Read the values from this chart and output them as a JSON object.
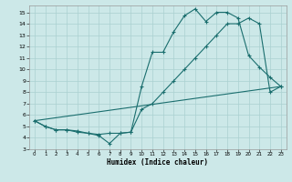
{
  "xlabel": "Humidex (Indice chaleur)",
  "bg_color": "#cce8e8",
  "grid_color": "#aad0d0",
  "line_color": "#1a6e6e",
  "xlim": [
    -0.5,
    23.5
  ],
  "ylim": [
    3,
    15.6
  ],
  "xticks": [
    0,
    1,
    2,
    3,
    4,
    5,
    6,
    7,
    8,
    9,
    10,
    11,
    12,
    13,
    14,
    15,
    16,
    17,
    18,
    19,
    20,
    21,
    22,
    23
  ],
  "yticks": [
    3,
    4,
    5,
    6,
    7,
    8,
    9,
    10,
    11,
    12,
    13,
    14,
    15
  ],
  "line1_x": [
    0,
    1,
    2,
    3,
    4,
    5,
    6,
    7,
    8,
    9,
    10,
    11,
    12,
    13,
    14,
    15,
    16,
    17,
    18,
    19,
    20,
    21,
    22,
    23
  ],
  "line1_y": [
    5.5,
    5.0,
    4.7,
    4.7,
    4.6,
    4.4,
    4.2,
    3.5,
    4.4,
    4.5,
    8.5,
    11.5,
    11.5,
    13.3,
    14.7,
    15.3,
    14.2,
    15.0,
    15.0,
    14.5,
    11.2,
    10.2,
    9.3,
    8.5
  ],
  "line2_x": [
    0,
    1,
    2,
    3,
    4,
    5,
    6,
    7,
    8,
    9,
    10,
    11,
    12,
    13,
    14,
    15,
    16,
    17,
    18,
    19,
    20,
    21,
    22,
    23
  ],
  "line2_y": [
    5.5,
    5.0,
    4.7,
    4.7,
    4.5,
    4.4,
    4.3,
    4.4,
    4.4,
    4.5,
    6.5,
    7.0,
    8.0,
    9.0,
    10.0,
    11.0,
    12.0,
    13.0,
    14.0,
    14.0,
    14.5,
    14.0,
    8.0,
    8.5
  ],
  "line3_x": [
    0,
    23
  ],
  "line3_y": [
    5.5,
    8.5
  ]
}
